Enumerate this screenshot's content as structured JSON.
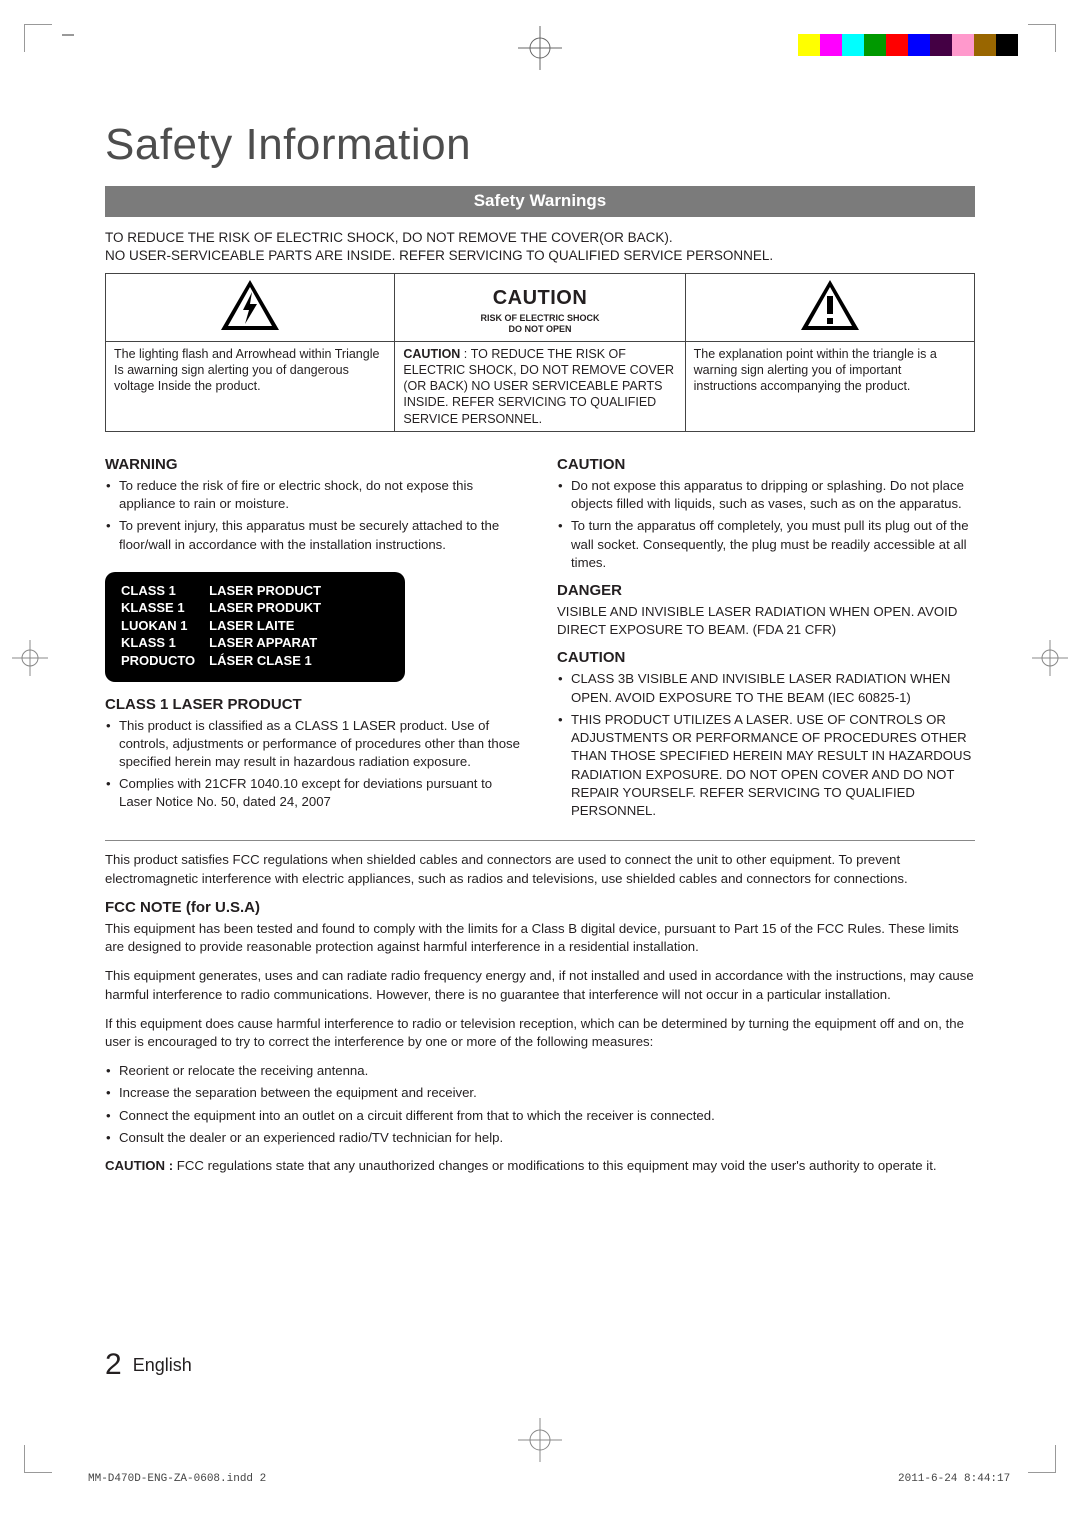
{
  "colors": {
    "banner_bg": "#7b7b7b",
    "banner_fg": "#ffffff",
    "text": "#231f20",
    "title": "#4d4d4d",
    "rule": "#888888",
    "black": "#000000",
    "white": "#ffffff"
  },
  "print_marks": {
    "left_bar_greys": [
      "#000000",
      "#1a1a1a",
      "#333333",
      "#4d4d4d",
      "#666666",
      "#808080",
      "#999999",
      "#b3b3b3",
      "#cccccc",
      "#e6e6e6",
      "#ffffff"
    ],
    "right_bar_colors": [
      "#ffff00",
      "#ff00ff",
      "#00ffff",
      "#009900",
      "#ff0000",
      "#0000ff",
      "#440044",
      "#ff99cc",
      "#996600",
      "#000000"
    ]
  },
  "title": "Safety Information",
  "banner": "Safety Warnings",
  "intro": [
    "TO REDUCE THE RISK OF ELECTRIC SHOCK, DO NOT REMOVE THE COVER(OR BACK).",
    "NO USER-SERVICEABLE PARTS ARE INSIDE. REFER SERVICING TO QUALIFIED SERVICE PERSONNEL."
  ],
  "caution_box": {
    "title": "CAUTION",
    "subtitle": "RISK OF ELECTRIC SHOCK\nDO NOT OPEN",
    "left_desc": "The lighting flash and Arrowhead within Triangle Is awarning sign alerting you of dangerous voltage Inside the product.",
    "mid_desc_label": "CAUTION",
    "mid_desc": "TO REDUCE THE RISK OF ELECTRIC SHOCK, DO NOT REMOVE COVER (OR BACK) NO USER SERVICEABLE PARTS INSIDE. REFER SERVICING TO QUALIFIED SERVICE PERSONNEL.",
    "right_desc": "The explanation point within the triangle is a warning sign alerting you of important instructions accompanying the product."
  },
  "left_col": {
    "warning_h": "WARNING",
    "warning_items": [
      "To reduce the risk of fire or electric shock, do not expose this appliance to rain or moisture.",
      "To prevent injury, this apparatus must be securely attached to the floor/wall in accordance with the installation instructions."
    ],
    "laser_label_rows": [
      [
        "CLASS 1",
        "LASER PRODUCT"
      ],
      [
        "KLASSE 1",
        "LASER PRODUKT"
      ],
      [
        "LUOKAN 1",
        "LASER LAITE"
      ],
      [
        "KLASS 1",
        "LASER APPARAT"
      ],
      [
        "PRODUCTO",
        "LÁSER CLASE 1"
      ]
    ],
    "class1_h": "CLASS 1 LASER PRODUCT",
    "class1_items": [
      "This product is classified as a CLASS 1 LASER product. Use of controls, adjustments or performance of procedures other than those specified herein may result in hazardous radiation exposure.",
      "Complies with 21CFR 1040.10 except for deviations pursuant to Laser Notice No. 50, dated 24, 2007"
    ]
  },
  "right_col": {
    "caution1_h": "CAUTION",
    "caution1_items": [
      "Do not expose this apparatus to dripping or splashing. Do not place objects filled with liquids, such as vases, such as on the apparatus.",
      "To turn the apparatus off completely, you must pull its plug out of the wall socket. Consequently, the plug must be readily accessible at all times."
    ],
    "danger_h": "DANGER",
    "danger_text": "VISIBLE AND INVISIBLE LASER RADIATION WHEN OPEN. AVOID DIRECT EXPOSURE TO BEAM. (FDA 21 CFR)",
    "caution2_h": "CAUTION",
    "caution2_items": [
      "CLASS 3B VISIBLE AND INVISIBLE LASER RADIATION WHEN OPEN. AVOID EXPOSURE TO THE BEAM (IEC 60825-1)",
      "THIS PRODUCT UTILIZES A LASER. USE OF CONTROLS OR ADJUSTMENTS OR PERFORMANCE OF PROCEDURES OTHER THAN THOSE SPECIFIED HEREIN MAY RESULT IN HAZARDOUS RADIATION EXPOSURE. DO NOT OPEN COVER AND DO NOT REPAIR YOURSELF. REFER SERVICING TO QUALIFIED PERSONNEL."
    ]
  },
  "fcc_intro": "This product satisfies FCC regulations when shielded cables and connectors are used to connect the unit to other equipment. To prevent electromagnetic interference with electric appliances, such as radios and televisions, use shielded cables and connectors for connections.",
  "fcc_h": "FCC NOTE (for U.S.A)",
  "fcc_paras": [
    "This equipment has been tested and found to comply with the limits for a Class B digital device, pursuant to Part 15 of the FCC Rules. These limits are designed to provide reasonable protection against harmful interference in a residential installation.",
    "This equipment generates, uses and can radiate radio frequency energy and, if not installed and used in accordance with the instructions, may cause harmful interference to radio communications. However, there is no guarantee that interference will not occur in a particular installation.",
    "If this equipment does cause harmful interference to radio or television reception, which can be determined by turning the equipment off and on, the user is encouraged to try to correct the interference by one or more of the following measures:"
  ],
  "fcc_items": [
    "Reorient or relocate the receiving antenna.",
    "Increase the separation between the equipment and receiver.",
    "Connect the equipment into an outlet on a circuit different from that to which the receiver is connected.",
    "Consult the dealer or an experienced radio/TV technician for help."
  ],
  "fcc_caution_label": "CAUTION : ",
  "fcc_caution": "FCC regulations state that any unauthorized changes or modifications to this equipment may void the user's authority to operate it.",
  "footer": {
    "page": "2",
    "lang": "English"
  },
  "indd": {
    "file": "MM-D470D-ENG-ZA-0608.indd   2",
    "timestamp": "2011-6-24   8:44:17"
  }
}
